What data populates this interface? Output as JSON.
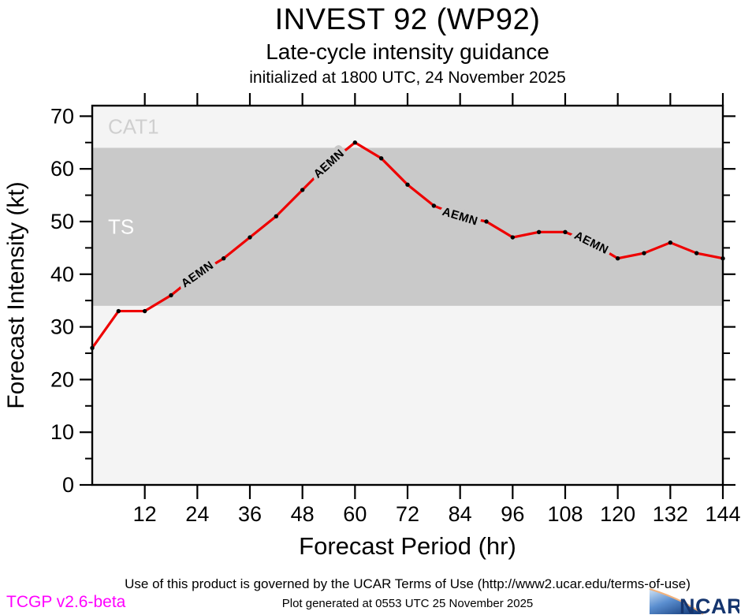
{
  "header": {
    "title": "INVEST 92 (WP92)",
    "subtitle": "Late-cycle intensity guidance",
    "init_line": "initialized at 1800 UTC, 24 November 2025"
  },
  "chart_data": {
    "type": "line",
    "title": "INVEST 92 (WP92)",
    "xlabel": "Forecast Period (hr)",
    "ylabel": "Forecast Intensity (kt)",
    "xlim": [
      0,
      144
    ],
    "ylim": [
      0,
      72
    ],
    "x_major_ticks": [
      12,
      24,
      36,
      48,
      60,
      72,
      84,
      96,
      108,
      120,
      132,
      144
    ],
    "y_major_ticks": [
      0,
      10,
      20,
      30,
      40,
      50,
      60,
      70
    ],
    "y_minor_ticks": [
      5,
      15,
      25,
      35,
      45,
      55,
      65
    ],
    "grid": false,
    "plot_bg_color": "#f4f4f4",
    "frame_color": "#000000",
    "bands": [
      {
        "label": "TS",
        "from": 34,
        "to": 64,
        "color": "#c9c9c9",
        "label_color": "#ffffff"
      },
      {
        "label": "CAT1",
        "from": 64,
        "to": 72,
        "color": "#f4f4f4",
        "label_color": "#cfcfcf"
      }
    ],
    "series": [
      {
        "name": "AEMN",
        "color": "#ee0000",
        "marker_color": "#000000",
        "x": [
          0,
          6,
          12,
          18,
          24,
          30,
          36,
          42,
          48,
          54,
          60,
          66,
          72,
          78,
          84,
          90,
          96,
          102,
          108,
          114,
          120,
          126,
          132,
          138,
          144
        ],
        "values": [
          26,
          33,
          33,
          36,
          40,
          43,
          47,
          51,
          56,
          61,
          65,
          62,
          57,
          53,
          51,
          50,
          47,
          48,
          48,
          46,
          43,
          44,
          46,
          44,
          43
        ],
        "label_hours": [
          24,
          54,
          84,
          114
        ]
      }
    ]
  },
  "footer": {
    "terms": "Use of this product is governed by the UCAR Terms of Use (http://www2.ucar.edu/terms-of-use)",
    "generated": "Plot generated at 0553 UTC   25 November 2025",
    "version": "TCGP v2.6-beta",
    "logo_text": "NCAR"
  }
}
